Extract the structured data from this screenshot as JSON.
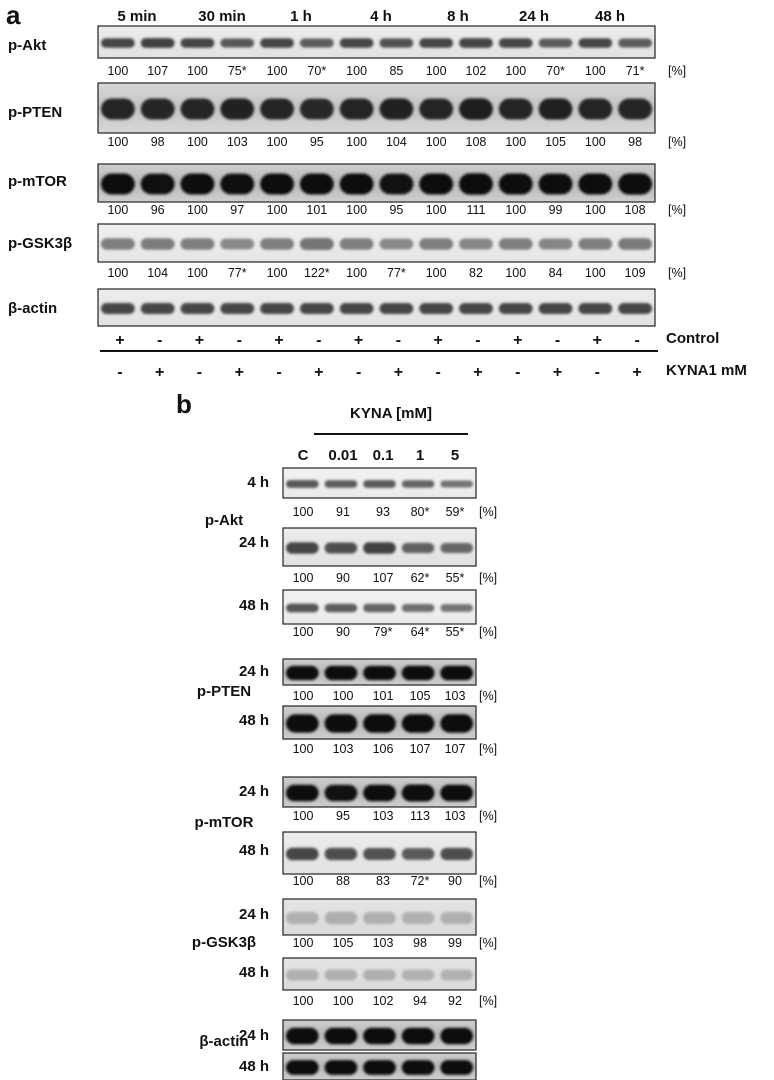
{
  "panel_a": {
    "label": "a",
    "timepoints": [
      "5 min",
      "30 min",
      "1 h",
      "4 h",
      "8 h",
      "24 h",
      "48 h"
    ],
    "pct_label": "[%]",
    "rows": [
      {
        "name": "p-Akt",
        "values": [
          "100",
          "107",
          "100",
          "75*",
          "100",
          "70*",
          "100",
          "85",
          "100",
          "102",
          "100",
          "70*",
          "100",
          "71*"
        ],
        "style": "mid"
      },
      {
        "name": "p-PTEN",
        "values": [
          "100",
          "98",
          "100",
          "103",
          "100",
          "95",
          "100",
          "104",
          "100",
          "108",
          "100",
          "105",
          "100",
          "98"
        ],
        "style": "dark"
      },
      {
        "name": "p-mTOR",
        "values": [
          "100",
          "96",
          "100",
          "97",
          "100",
          "101",
          "100",
          "95",
          "100",
          "111",
          "100",
          "99",
          "100",
          "108"
        ],
        "style": "xdark"
      },
      {
        "name": "p-GSK3β",
        "values": [
          "100",
          "104",
          "100",
          "77*",
          "100",
          "122*",
          "100",
          "77*",
          "100",
          "82",
          "100",
          "84",
          "100",
          "109"
        ],
        "style": "light"
      },
      {
        "name": "β-actin",
        "values": [],
        "style": "mid"
      }
    ],
    "control_signs": [
      "+",
      "-",
      "+",
      "-",
      "+",
      "-",
      "+",
      "-",
      "+",
      "-",
      "+",
      "-",
      "+",
      "-"
    ],
    "kyna_signs": [
      "-",
      "+",
      "-",
      "+",
      "-",
      "+",
      "-",
      "+",
      "-",
      "+",
      "-",
      "+",
      "-",
      "+"
    ],
    "control_label": "Control",
    "kyna_label": "KYNA1 mM"
  },
  "panel_b": {
    "label": "b",
    "header": "KYNA [mM]",
    "columns": [
      "C",
      "0.01",
      "0.1",
      "1",
      "5"
    ],
    "pct_label": "[%]",
    "groups": [
      {
        "name": "p-Akt",
        "blots": [
          {
            "time": "4 h",
            "values": [
              "100",
              "91",
              "93",
              "80*",
              "59*"
            ],
            "style": "fade"
          },
          {
            "time": "24 h",
            "values": [
              "100",
              "90",
              "107",
              "62*",
              "55*"
            ],
            "style": "mid"
          },
          {
            "time": "48 h",
            "values": [
              "100",
              "90",
              "79*",
              "64*",
              "55*"
            ],
            "style": "fade"
          }
        ]
      },
      {
        "name": "p-PTEN",
        "blots": [
          {
            "time": "24 h",
            "values": [
              "100",
              "100",
              "101",
              "105",
              "103"
            ],
            "style": "xdark"
          },
          {
            "time": "48 h",
            "values": [
              "100",
              "103",
              "106",
              "107",
              "107"
            ],
            "style": "xdark"
          }
        ]
      },
      {
        "name": "p-mTOR",
        "blots": [
          {
            "time": "24 h",
            "values": [
              "100",
              "95",
              "103",
              "113",
              "103"
            ],
            "style": "xdark"
          },
          {
            "time": "48 h",
            "values": [
              "100",
              "88",
              "83",
              "72*",
              "90"
            ],
            "style": "mid"
          }
        ]
      },
      {
        "name": "p-GSK3β",
        "blots": [
          {
            "time": "24 h",
            "values": [
              "100",
              "105",
              "103",
              "98",
              "99"
            ],
            "style": "faint"
          },
          {
            "time": "48 h",
            "values": [
              "100",
              "100",
              "102",
              "94",
              "92"
            ],
            "style": "faint"
          }
        ]
      },
      {
        "name": "β-actin",
        "blots": [
          {
            "time": "24 h",
            "values": [],
            "style": "xdark"
          },
          {
            "time": "48 h",
            "values": [],
            "style": "xdark"
          }
        ]
      }
    ]
  }
}
